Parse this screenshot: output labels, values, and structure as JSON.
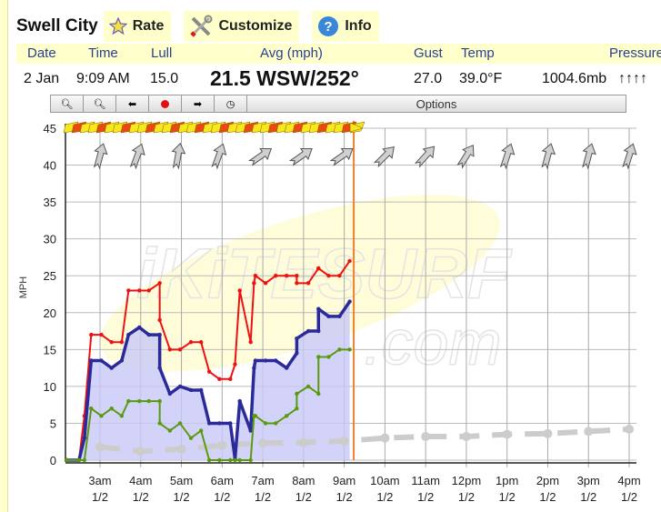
{
  "site_title": "Swell City",
  "tabs": [
    {
      "label": "Rate",
      "icon": "star-icon"
    },
    {
      "label": "Customize",
      "icon": "tools-icon"
    },
    {
      "label": "Info",
      "icon": "question-icon"
    }
  ],
  "columns": {
    "date": "Date",
    "time": "Time",
    "lull": "Lull",
    "avg": "Avg (mph)",
    "gust": "Gust",
    "temp": "Temp",
    "pressure": "Pressure"
  },
  "current": {
    "date": "2 Jan",
    "time": "9:09 AM",
    "lull": "15.0",
    "avg": "21.5 WSW/252°",
    "gust": "27.0",
    "temp": "39.0°F",
    "pressure": "1004.6mb",
    "pressure_trend": "↑↑↑↑"
  },
  "toolbar": {
    "buttons": [
      "zoom-in-icon",
      "zoom-out-icon",
      "arrow-left-icon",
      "record-icon",
      "arrow-right-icon",
      "clock-icon"
    ],
    "options_label": "Options"
  },
  "colors": {
    "gust": "#ee1111",
    "avg": "#2a2a9a",
    "avg_fill": "#c8c8f8",
    "lull": "#5a9a10",
    "forecast": "#cccccc",
    "now_line": "#f08030",
    "header_bg": "#ffffcc"
  },
  "chart_data": {
    "type": "line",
    "ylabel": "MPH",
    "ylim": [
      0,
      45
    ],
    "yticks": [
      0,
      5,
      10,
      15,
      20,
      25,
      30,
      35,
      40,
      45
    ],
    "xlim": [
      "2:10",
      "16:10"
    ],
    "xticks": [
      {
        "t": "3:00",
        "label": "3am",
        "date": "1/2"
      },
      {
        "t": "4:00",
        "label": "4am",
        "date": "1/2"
      },
      {
        "t": "5:00",
        "label": "5am",
        "date": "1/2"
      },
      {
        "t": "6:00",
        "label": "6am",
        "date": "1/2"
      },
      {
        "t": "7:00",
        "label": "7am",
        "date": "1/2"
      },
      {
        "t": "8:00",
        "label": "8am",
        "date": "1/2"
      },
      {
        "t": "9:00",
        "label": "9am",
        "date": "1/2"
      },
      {
        "t": "10:00",
        "label": "10am",
        "date": "1/2"
      },
      {
        "t": "11:00",
        "label": "11am",
        "date": "1/2"
      },
      {
        "t": "12:00",
        "label": "12pm",
        "date": "1/2"
      },
      {
        "t": "13:00",
        "label": "1pm",
        "date": "1/2"
      },
      {
        "t": "14:00",
        "label": "2pm",
        "date": "1/2"
      },
      {
        "t": "15:00",
        "label": "3pm",
        "date": "1/2"
      },
      {
        "t": "16:00",
        "label": "4pm",
        "date": "1/2"
      }
    ],
    "grid": true,
    "now": "9:14",
    "times": [
      "2:11",
      "2:29",
      "2:37",
      "2:47",
      "3:02",
      "3:17",
      "3:32",
      "3:42",
      "3:58",
      "4:12",
      "4:28",
      "4:28",
      "4:43",
      "4:58",
      "5:14",
      "5:29",
      "5:41",
      "5:56",
      "6:12",
      "6:19",
      "6:26",
      "6:42",
      "6:47",
      "6:49",
      "7:04",
      "7:19",
      "7:35",
      "7:50",
      "7:50",
      "8:07",
      "8:22",
      "8:22",
      "8:37",
      "8:53",
      "9:08"
    ],
    "series": [
      {
        "key": "gust",
        "values": [
          0,
          0,
          6,
          17,
          17,
          16,
          16,
          23,
          23,
          23,
          24,
          19,
          15,
          15,
          16,
          16,
          12,
          11,
          11,
          13,
          23,
          16,
          24,
          25,
          24,
          25,
          25,
          25,
          24,
          24,
          26,
          26,
          25,
          25,
          27
        ]
      },
      {
        "key": "avg",
        "values": [
          0,
          0,
          3,
          13.5,
          13.5,
          12.5,
          13.5,
          17,
          18,
          17,
          17,
          12.5,
          9,
          10,
          9.5,
          9.5,
          5,
          5,
          5,
          0.2,
          8,
          4,
          12.5,
          13.5,
          13.5,
          13.5,
          12.5,
          14.5,
          16.5,
          17.5,
          17.5,
          20.5,
          19.5,
          19.5,
          21.5
        ]
      },
      {
        "key": "lull",
        "values": [
          0,
          0,
          0,
          7,
          6,
          7,
          6,
          8,
          8,
          8,
          8,
          5,
          4,
          5,
          3,
          4,
          0,
          0,
          0,
          0,
          0,
          0,
          6,
          6,
          5,
          5,
          6,
          7,
          9,
          10,
          9,
          14,
          14,
          15,
          15
        ]
      }
    ],
    "forecast": {
      "times": [
        "3:00",
        "4:00",
        "5:00",
        "6:00",
        "7:00",
        "8:00",
        "9:00",
        "10:00",
        "11:00",
        "12:00",
        "13:00",
        "14:00",
        "15:00",
        "16:00"
      ],
      "values": [
        1.8,
        1.2,
        1.5,
        2,
        2.3,
        2.4,
        2.6,
        3,
        3.2,
        3.2,
        3.5,
        3.6,
        3.9,
        4.2
      ]
    },
    "direction_arrows": {
      "times": [
        "3:00",
        "3:55",
        "4:55",
        "5:55",
        "6:57",
        "7:57",
        "8:57",
        "10:00",
        "11:00",
        "12:00",
        "13:00",
        "14:00",
        "15:00",
        "16:00"
      ],
      "from_deg": [
        195,
        200,
        190,
        200,
        235,
        235,
        235,
        225,
        222,
        212,
        198,
        195,
        195,
        198
      ]
    }
  }
}
